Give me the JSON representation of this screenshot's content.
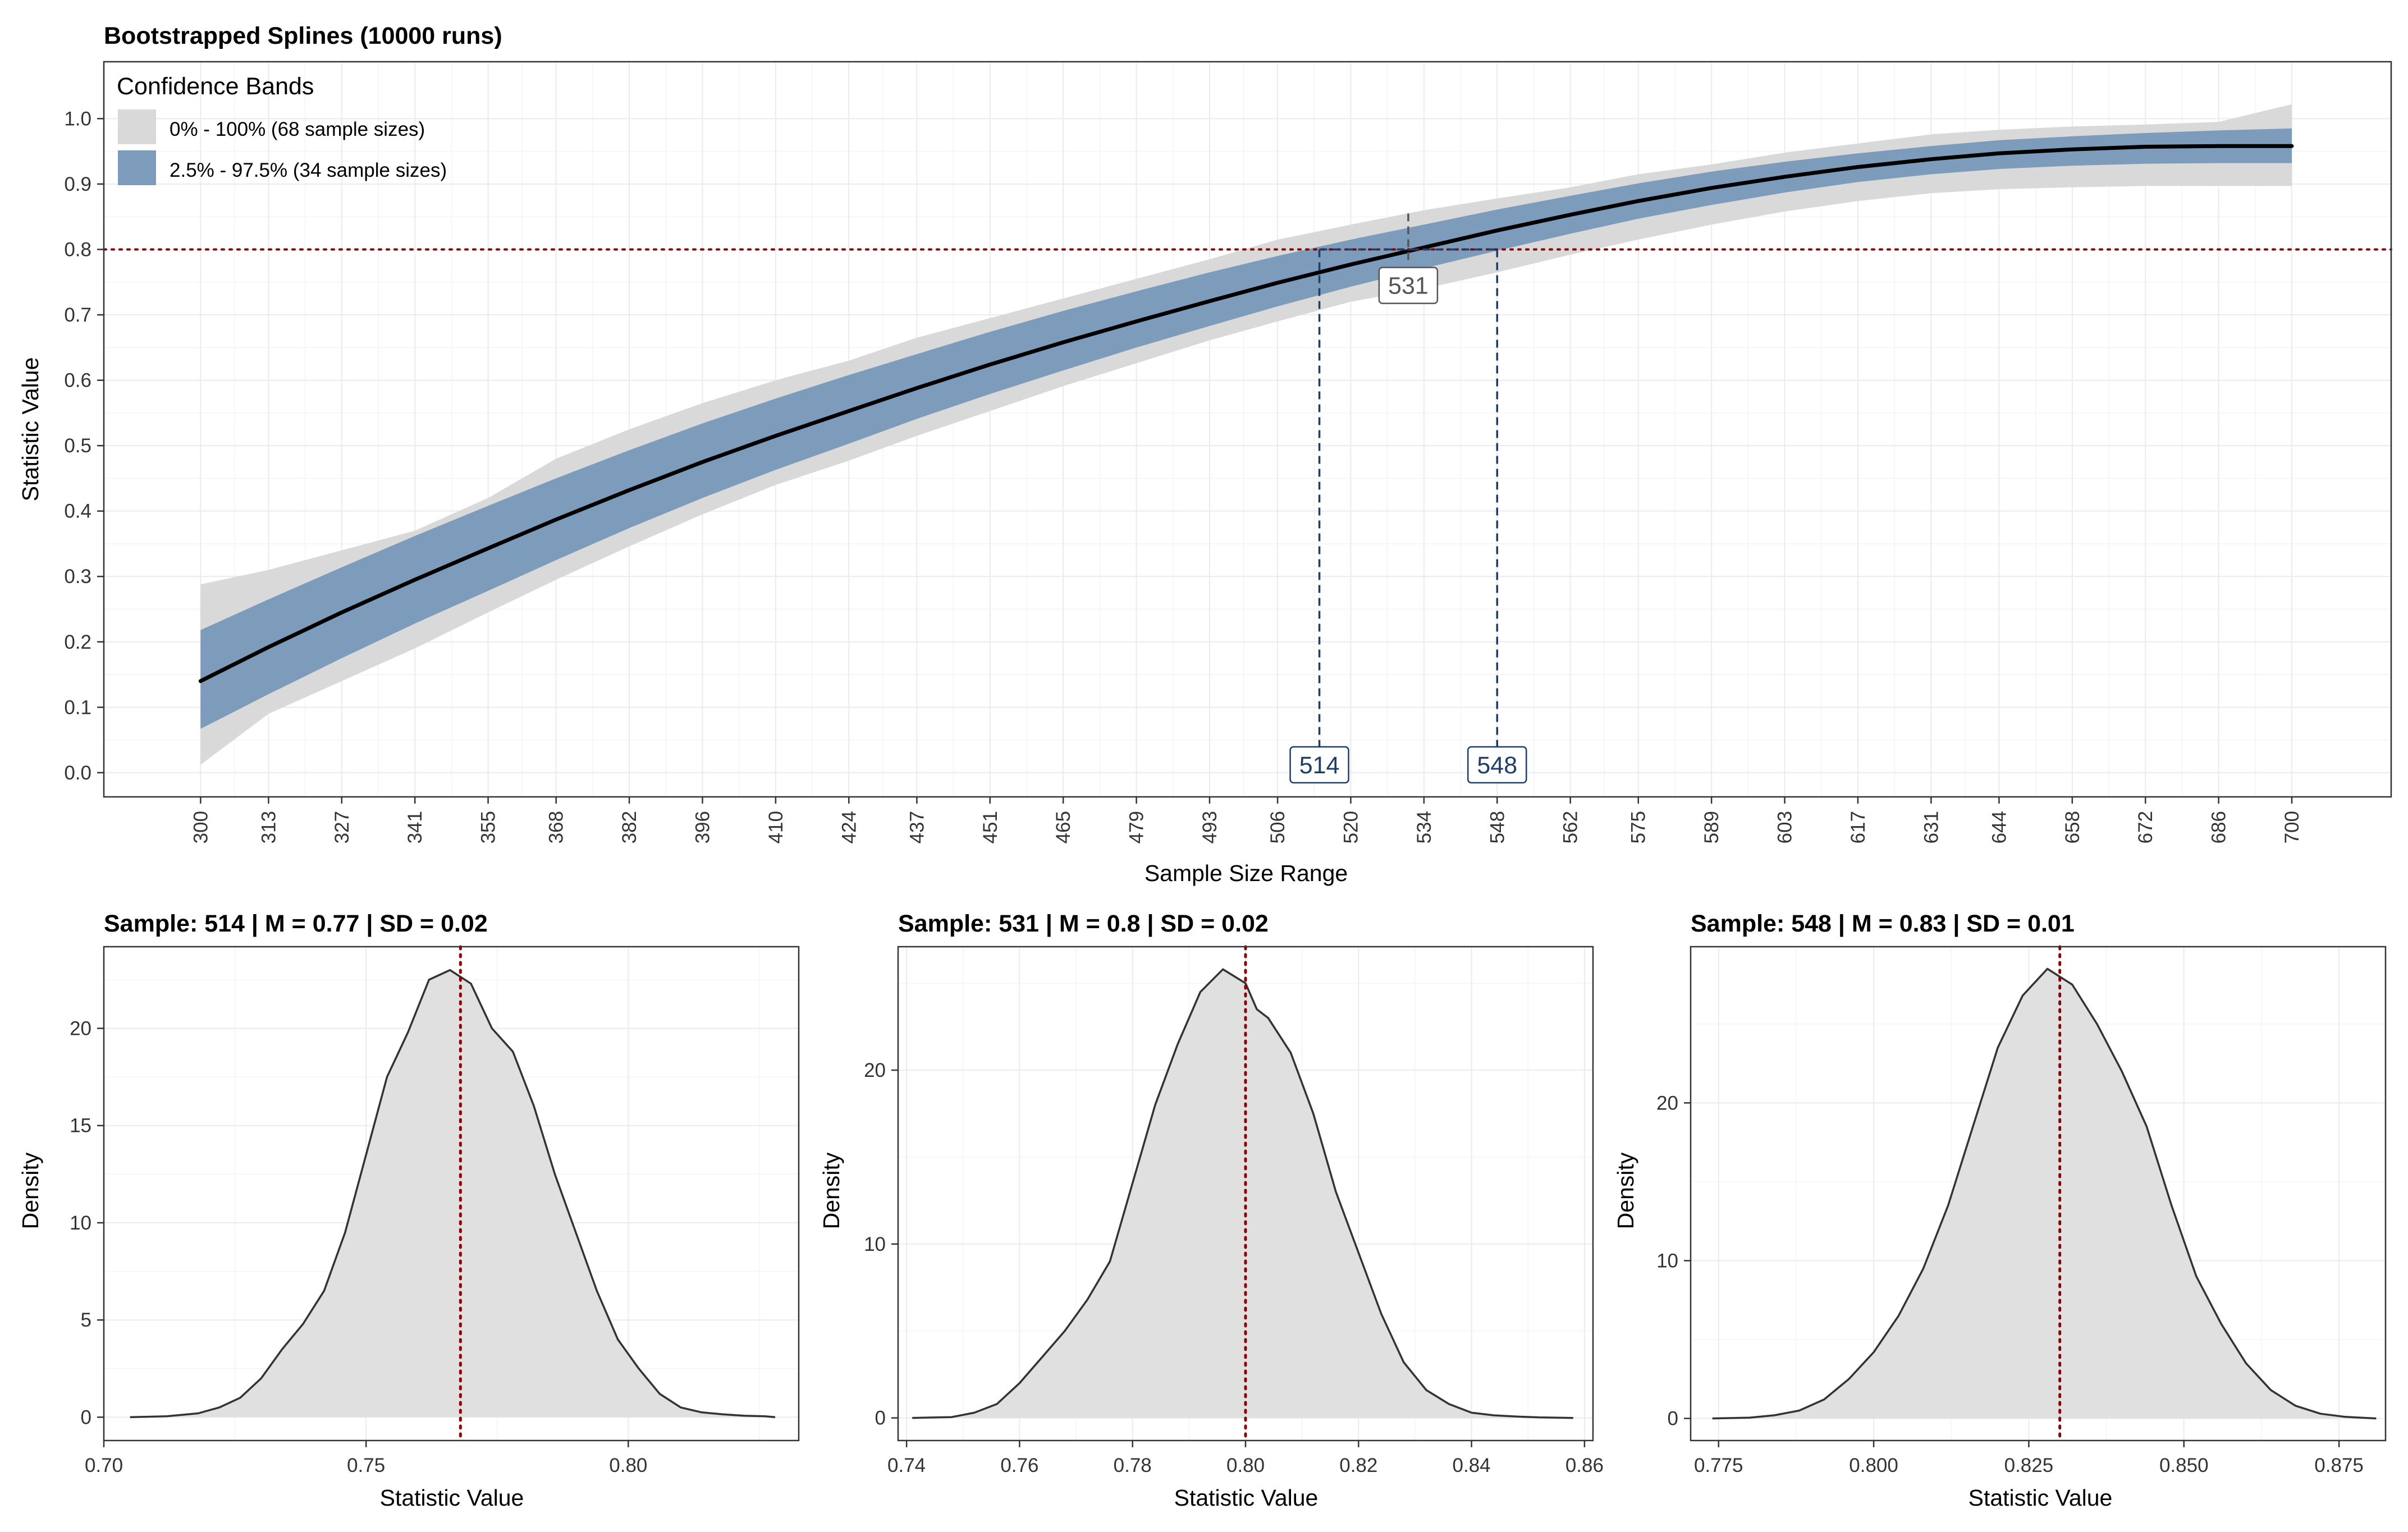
{
  "chart_data": [
    {
      "type": "line",
      "title": "Bootstrapped Splines (10000 runs)",
      "xlabel": "Sample Size Range",
      "ylabel": "Statistic Value",
      "xlim": [
        300,
        700
      ],
      "ylim": [
        0,
        1
      ],
      "x_tick_labels": [
        "300",
        "313",
        "327",
        "341",
        "355",
        "368",
        "382",
        "396",
        "410",
        "424",
        "437",
        "451",
        "465",
        "479",
        "493",
        "506",
        "520",
        "534",
        "548",
        "562",
        "575",
        "589",
        "603",
        "617",
        "631",
        "644",
        "658",
        "672",
        "686",
        "700"
      ],
      "y_tick_labels": [
        "0.0",
        "0.1",
        "0.2",
        "0.3",
        "0.4",
        "0.5",
        "0.6",
        "0.7",
        "0.8",
        "0.9",
        "1.0"
      ],
      "grid": true,
      "legend": {
        "title": "Confidence Bands",
        "placement": "top-left",
        "items": [
          {
            "label": "0% - 100% (68 sample sizes)",
            "color": "#d9d9d9"
          },
          {
            "label": "2.5% - 97.5% (34 sample sizes)",
            "color": "#7d9bbb"
          }
        ]
      },
      "series": [
        {
          "role": "median spline",
          "x": [
            300,
            313,
            327,
            341,
            355,
            368,
            382,
            396,
            410,
            424,
            437,
            451,
            465,
            479,
            493,
            506,
            520,
            534,
            548,
            562,
            575,
            589,
            603,
            617,
            631,
            644,
            658,
            672,
            686,
            700
          ],
          "values": [
            0.14,
            0.192,
            0.245,
            0.295,
            0.343,
            0.387,
            0.432,
            0.475,
            0.515,
            0.553,
            0.588,
            0.624,
            0.658,
            0.69,
            0.721,
            0.749,
            0.777,
            0.803,
            0.829,
            0.853,
            0.874,
            0.894,
            0.911,
            0.926,
            0.938,
            0.947,
            0.953,
            0.957,
            0.958,
            0.958
          ]
        },
        {
          "role": "2.5% - 97.5% band",
          "x": [
            300,
            313,
            327,
            341,
            355,
            368,
            382,
            396,
            410,
            424,
            437,
            451,
            465,
            479,
            493,
            506,
            520,
            534,
            548,
            562,
            575,
            589,
            603,
            617,
            631,
            644,
            658,
            672,
            686,
            700
          ],
          "lower": [
            0.067,
            0.12,
            0.175,
            0.228,
            0.278,
            0.325,
            0.374,
            0.42,
            0.463,
            0.503,
            0.541,
            0.579,
            0.615,
            0.65,
            0.683,
            0.713,
            0.743,
            0.771,
            0.798,
            0.824,
            0.847,
            0.868,
            0.887,
            0.903,
            0.915,
            0.923,
            0.928,
            0.931,
            0.932,
            0.932
          ],
          "upper": [
            0.218,
            0.265,
            0.314,
            0.362,
            0.408,
            0.45,
            0.493,
            0.534,
            0.572,
            0.608,
            0.64,
            0.674,
            0.706,
            0.736,
            0.765,
            0.79,
            0.815,
            0.838,
            0.861,
            0.882,
            0.901,
            0.919,
            0.934,
            0.947,
            0.958,
            0.967,
            0.973,
            0.978,
            0.982,
            0.985
          ]
        },
        {
          "role": "0% - 100% band",
          "x": [
            300,
            313,
            327,
            341,
            355,
            368,
            382,
            396,
            410,
            424,
            437,
            451,
            465,
            479,
            493,
            506,
            520,
            534,
            548,
            562,
            575,
            589,
            603,
            617,
            631,
            644,
            658,
            672,
            686,
            700
          ],
          "lower": [
            0.012,
            0.09,
            0.14,
            0.19,
            0.245,
            0.295,
            0.346,
            0.395,
            0.44,
            0.477,
            0.515,
            0.553,
            0.591,
            0.626,
            0.661,
            0.69,
            0.72,
            0.74,
            0.765,
            0.792,
            0.815,
            0.838,
            0.858,
            0.874,
            0.886,
            0.892,
            0.895,
            0.897,
            0.897,
            0.897
          ]
        },
        {
          "role": "0% - 100% band upper",
          "x": [
            300,
            313,
            327,
            341,
            355,
            368,
            382,
            396,
            410,
            424,
            437,
            451,
            465,
            479,
            493,
            506,
            520,
            534,
            548,
            562,
            575,
            589,
            603,
            617,
            631,
            644,
            658,
            672,
            686,
            700
          ],
          "values": [
            0.288,
            0.31,
            0.34,
            0.37,
            0.42,
            0.48,
            0.525,
            0.565,
            0.6,
            0.63,
            0.665,
            0.695,
            0.725,
            0.755,
            0.785,
            0.815,
            0.838,
            0.86,
            0.878,
            0.895,
            0.915,
            0.93,
            0.948,
            0.962,
            0.976,
            0.983,
            0.988,
            0.991,
            0.995,
            1.022
          ]
        }
      ],
      "reference_line": {
        "y": 0.8,
        "color": "#8b0000"
      },
      "markers": [
        {
          "x": 514,
          "label": "514",
          "y_top": 0.8,
          "color": "#1f3e66"
        },
        {
          "x": 531,
          "label": "531",
          "y_top": 0.855,
          "color": "#555555"
        },
        {
          "x": 548,
          "label": "548",
          "y_top": 0.8,
          "color": "#1f3e66"
        }
      ]
    },
    {
      "type": "area",
      "title": "Sample: 514 | M = 0.77 | SD = 0.02",
      "xlabel": "Statistic Value",
      "ylabel": "Density",
      "xlim": [
        0.7,
        0.83
      ],
      "ylim": [
        0,
        25
      ],
      "x_ticks": [
        0.7,
        0.75,
        0.8
      ],
      "x_tick_labels": [
        "0.70",
        "0.75",
        "0.80"
      ],
      "y_ticks": [
        0,
        5,
        10,
        15,
        20
      ],
      "y_tick_labels": [
        "0",
        "5",
        "10",
        "15",
        "20"
      ],
      "mean": 0.768,
      "x": [
        0.705,
        0.712,
        0.718,
        0.722,
        0.726,
        0.73,
        0.734,
        0.738,
        0.742,
        0.746,
        0.75,
        0.754,
        0.758,
        0.762,
        0.766,
        0.77,
        0.774,
        0.778,
        0.782,
        0.786,
        0.79,
        0.794,
        0.798,
        0.802,
        0.806,
        0.81,
        0.814,
        0.818,
        0.822,
        0.826,
        0.828
      ],
      "values": [
        0,
        0.05,
        0.2,
        0.5,
        1,
        2,
        3.5,
        4.8,
        6.5,
        9.5,
        13.5,
        17.5,
        19.8,
        22.5,
        23,
        22.3,
        20,
        18.8,
        16,
        12.5,
        9.5,
        6.5,
        4,
        2.5,
        1.2,
        0.5,
        0.25,
        0.15,
        0.08,
        0.05,
        0
      ]
    },
    {
      "type": "area",
      "title": "Sample: 531 | M = 0.8 | SD = 0.02",
      "xlabel": "Statistic Value",
      "ylabel": "Density",
      "xlim": [
        0.74,
        0.86
      ],
      "ylim": [
        0,
        27
      ],
      "x_ticks": [
        0.74,
        0.76,
        0.78,
        0.8,
        0.82,
        0.84,
        0.86
      ],
      "x_tick_labels": [
        "0.74",
        "0.76",
        "0.78",
        "0.80",
        "0.82",
        "0.84",
        "0.86"
      ],
      "y_ticks": [
        0,
        10,
        20
      ],
      "y_tick_labels": [
        "0",
        "10",
        "20"
      ],
      "mean": 0.8,
      "x": [
        0.741,
        0.748,
        0.752,
        0.756,
        0.76,
        0.764,
        0.768,
        0.772,
        0.776,
        0.78,
        0.784,
        0.788,
        0.792,
        0.796,
        0.8,
        0.802,
        0.804,
        0.808,
        0.812,
        0.816,
        0.82,
        0.824,
        0.828,
        0.832,
        0.836,
        0.84,
        0.844,
        0.848,
        0.852,
        0.858
      ],
      "values": [
        0,
        0.05,
        0.3,
        0.8,
        2,
        3.5,
        5,
        6.8,
        9,
        13.5,
        18,
        21.5,
        24.5,
        25.8,
        25,
        23.5,
        23,
        21,
        17.5,
        13,
        9.5,
        6,
        3.2,
        1.6,
        0.8,
        0.3,
        0.15,
        0.08,
        0.03,
        0
      ]
    },
    {
      "type": "area",
      "title": "Sample: 548 | M = 0.83 | SD = 0.01",
      "xlabel": "Statistic Value",
      "ylabel": "Density",
      "xlim": [
        0.772,
        0.882
      ],
      "ylim": [
        0,
        30
      ],
      "x_ticks": [
        0.775,
        0.8,
        0.825,
        0.85,
        0.875
      ],
      "x_tick_labels": [
        "0.775",
        "0.800",
        "0.825",
        "0.850",
        "0.875"
      ],
      "y_ticks": [
        0,
        10,
        20
      ],
      "y_tick_labels": [
        "0",
        "10",
        "20"
      ],
      "mean": 0.83,
      "x": [
        0.774,
        0.78,
        0.784,
        0.788,
        0.792,
        0.796,
        0.8,
        0.804,
        0.808,
        0.812,
        0.816,
        0.82,
        0.824,
        0.828,
        0.832,
        0.836,
        0.84,
        0.844,
        0.848,
        0.852,
        0.856,
        0.86,
        0.864,
        0.868,
        0.872,
        0.876,
        0.881
      ],
      "values": [
        0,
        0.05,
        0.2,
        0.5,
        1.2,
        2.5,
        4.2,
        6.5,
        9.5,
        13.5,
        18.5,
        23.5,
        26.8,
        28.5,
        27.5,
        25,
        22,
        18.5,
        13.5,
        9,
        6,
        3.5,
        1.8,
        0.8,
        0.3,
        0.1,
        0
      ]
    }
  ],
  "colors": {
    "band_outer": "#d9d9d9",
    "band_inner": "#7d9bbb",
    "median_line": "#000000",
    "reference": "#8b0000",
    "marker_blue": "#1f3e66",
    "marker_grey": "#555555",
    "density_fill": "#e0e0e0",
    "grid": "#ebebeb"
  }
}
